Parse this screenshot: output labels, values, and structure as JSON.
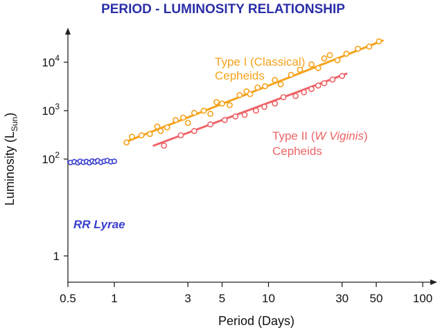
{
  "chart_data": {
    "type": "scatter",
    "title": "PERIOD - LUMINOSITY RELATIONSHIP",
    "xlabel": "Period (Days)",
    "ylabel": {
      "main": "Luminosity (L",
      "sub": "Sun",
      "close": ")"
    },
    "x_scale": "log",
    "y_scale": "log",
    "xlim": [
      0.5,
      100
    ],
    "ylim": [
      0.3,
      40000
    ],
    "x_ticks": [
      {
        "value": 0.5,
        "label": "0.5"
      },
      {
        "value": 1,
        "label": "1"
      },
      {
        "value": 3,
        "label": "3"
      },
      {
        "value": 5,
        "label": "5"
      },
      {
        "value": 10,
        "label": "10"
      },
      {
        "value": 30,
        "label": "30"
      },
      {
        "value": 50,
        "label": "50"
      },
      {
        "value": 100,
        "label": "100"
      }
    ],
    "y_ticks": [
      {
        "value": 1,
        "base": "1",
        "exp": ""
      },
      {
        "value": 100,
        "base": "10",
        "exp": "2"
      },
      {
        "value": 1000,
        "base": "10",
        "exp": "3"
      },
      {
        "value": 10000,
        "base": "10",
        "exp": "4"
      }
    ],
    "grid": false,
    "series": [
      {
        "name": "Type I (Classical) Cepheids",
        "labels": [
          {
            "text": "Type I (Classical)",
            "italic": ""
          },
          {
            "text": "Cepheids",
            "italic": ""
          }
        ],
        "color": "#f5a21b",
        "fit": [
          [
            1.2,
            230
          ],
          [
            55,
            28000
          ]
        ],
        "points": [
          [
            1.2,
            220
          ],
          [
            1.3,
            290
          ],
          [
            1.5,
            310
          ],
          [
            1.7,
            330
          ],
          [
            1.9,
            470
          ],
          [
            2.0,
            380
          ],
          [
            2.2,
            450
          ],
          [
            2.5,
            640
          ],
          [
            2.8,
            720
          ],
          [
            3.0,
            560
          ],
          [
            3.3,
            900
          ],
          [
            3.8,
            1000
          ],
          [
            4.2,
            860
          ],
          [
            4.6,
            1500
          ],
          [
            5.0,
            1400
          ],
          [
            5.6,
            1300
          ],
          [
            6.5,
            2100
          ],
          [
            7.2,
            2500
          ],
          [
            7.6,
            2200
          ],
          [
            8.5,
            3000
          ],
          [
            9.5,
            3200
          ],
          [
            11,
            4300
          ],
          [
            12,
            3500
          ],
          [
            14,
            5500
          ],
          [
            16,
            7000
          ],
          [
            19,
            9000
          ],
          [
            21,
            7600
          ],
          [
            23,
            12000
          ],
          [
            25,
            14000
          ],
          [
            28,
            11000
          ],
          [
            32,
            15000
          ],
          [
            38,
            19000
          ],
          [
            45,
            21000
          ],
          [
            52,
            27000
          ]
        ]
      },
      {
        "name": "Type II (W Viginis) Cepheids",
        "labels": [
          {
            "text": "Type II (",
            "italic": "W Viginis",
            "after": ")"
          },
          {
            "text": "Cepheids",
            "italic": ""
          }
        ],
        "color": "#ee6467",
        "fit": [
          [
            1.8,
            190
          ],
          [
            32,
            5800
          ]
        ],
        "points": [
          [
            2.1,
            190
          ],
          [
            2.7,
            310
          ],
          [
            3.3,
            380
          ],
          [
            4.2,
            520
          ],
          [
            5.2,
            640
          ],
          [
            6.1,
            760
          ],
          [
            7.0,
            820
          ],
          [
            8.3,
            1000
          ],
          [
            9.4,
            1200
          ],
          [
            11,
            1400
          ],
          [
            12.5,
            1900
          ],
          [
            15,
            2000
          ],
          [
            17,
            2400
          ],
          [
            19,
            2800
          ],
          [
            21,
            3300
          ],
          [
            23,
            3700
          ],
          [
            26,
            4400
          ],
          [
            30,
            5200
          ]
        ]
      },
      {
        "name": "RR Lyrae",
        "labels": [
          {
            "text": "",
            "italic": "RR Lyrae"
          }
        ],
        "color": "#3a3fcf",
        "fit": [
          [
            0.5,
            90
          ],
          [
            1.0,
            90
          ]
        ],
        "points": [
          [
            0.52,
            85
          ],
          [
            0.55,
            88
          ],
          [
            0.58,
            84
          ],
          [
            0.6,
            90
          ],
          [
            0.63,
            86
          ],
          [
            0.66,
            89
          ],
          [
            0.69,
            84
          ],
          [
            0.72,
            91
          ],
          [
            0.75,
            87
          ],
          [
            0.78,
            92
          ],
          [
            0.82,
            86
          ],
          [
            0.86,
            90
          ],
          [
            0.9,
            93
          ],
          [
            0.95,
            88
          ],
          [
            1.0,
            90
          ]
        ]
      }
    ]
  }
}
